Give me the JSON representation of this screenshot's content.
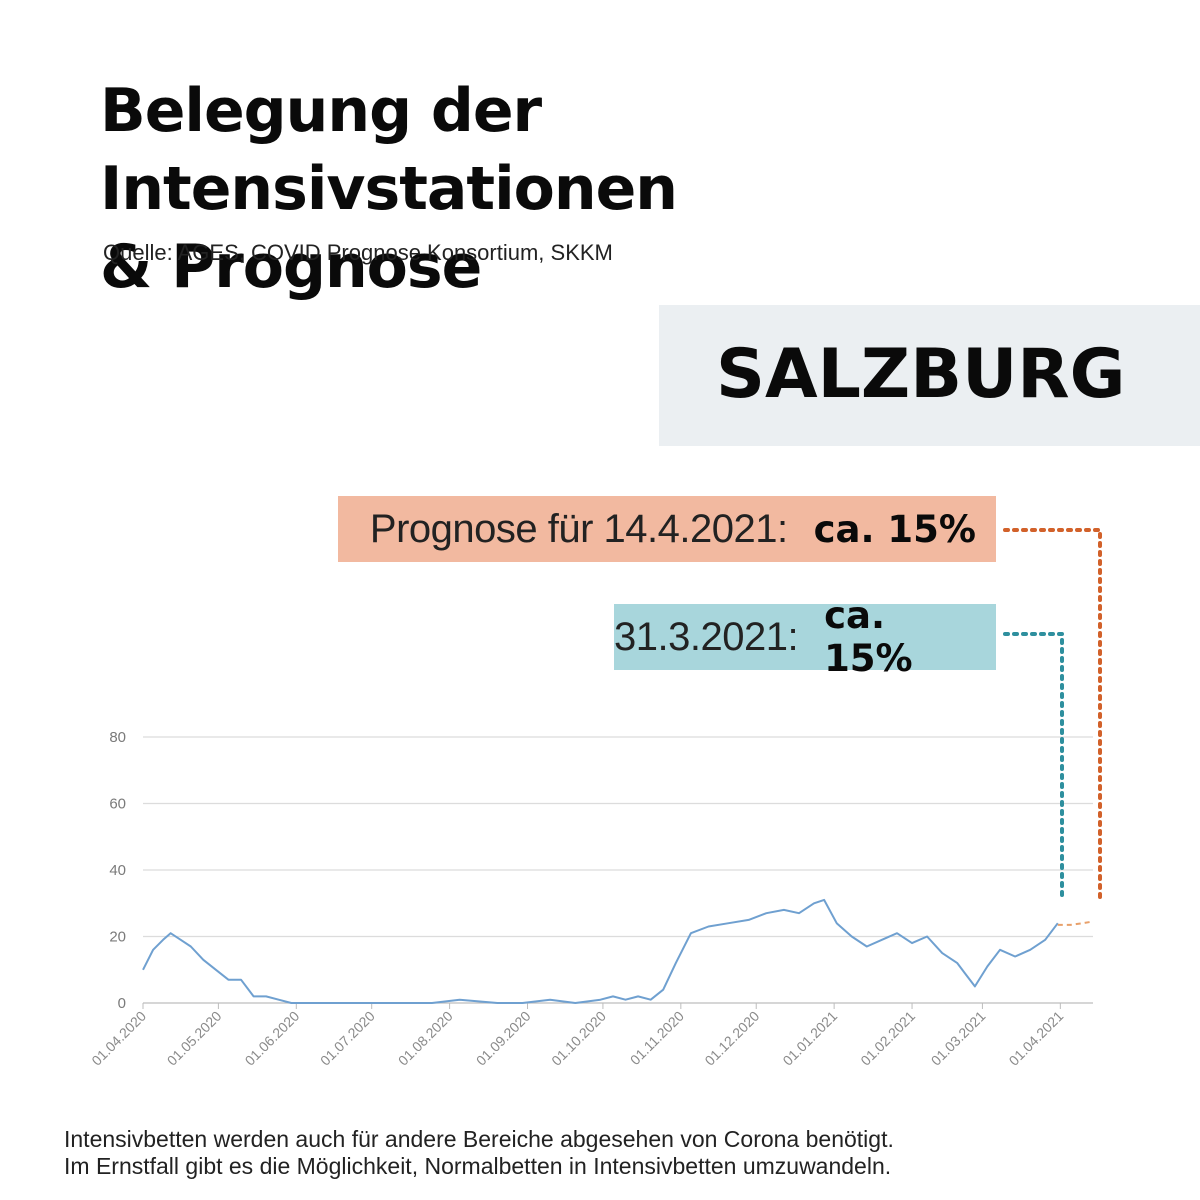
{
  "header": {
    "title_line1": "Belegung der Intensivstationen",
    "title_line2": "& Prognose",
    "source": "Quelle: AGES, COVID Prognose Konsortium, SKKM"
  },
  "region": {
    "label": "SALZBURG"
  },
  "callouts": {
    "forecast": {
      "label": "Prognose für 14.4.2021:",
      "value": "ca. 15%",
      "color": "#f2b9a0",
      "line_color": "#d2612a"
    },
    "current": {
      "label": "31.3.2021:",
      "value": "ca. 15%",
      "color": "#a8d6dc",
      "line_color": "#2e8f9e"
    }
  },
  "footnote": {
    "line1": "Intensivbetten werden auch für andere Bereiche abgesehen von Corona benötigt.",
    "line2": "Im Ernstfall gibt es die Möglichkeit, Normalbetten in Intensivbetten umzuwandeln."
  },
  "chart_data": {
    "type": "line",
    "x_start": "01.04.2020",
    "x_end": "14.04.2021",
    "ylim": [
      0,
      80
    ],
    "yticks": [
      0,
      20,
      40,
      60,
      80
    ],
    "xtick_labels": [
      "01.04.2020",
      "01.05.2020",
      "01.06.2020",
      "01.07.2020",
      "01.08.2020",
      "01.09.2020",
      "01.10.2020",
      "01.11.2020",
      "01.12.2020",
      "01.01.2021",
      "01.02.2021",
      "01.03.2021",
      "01.04.2021"
    ],
    "grid": true,
    "series": [
      {
        "color": "#6fa0d0",
        "x": [
          "2020-04-01",
          "2020-04-05",
          "2020-04-09",
          "2020-04-12",
          "2020-04-16",
          "2020-04-20",
          "2020-04-25",
          "2020-04-30",
          "2020-05-05",
          "2020-05-10",
          "2020-05-15",
          "2020-05-20",
          "2020-05-25",
          "2020-05-30",
          "2020-06-05",
          "2020-06-15",
          "2020-06-22",
          "2020-07-01",
          "2020-07-15",
          "2020-07-25",
          "2020-08-05",
          "2020-08-20",
          "2020-08-30",
          "2020-09-10",
          "2020-09-20",
          "2020-09-30",
          "2020-10-05",
          "2020-10-10",
          "2020-10-15",
          "2020-10-20",
          "2020-10-25",
          "2020-10-30",
          "2020-11-05",
          "2020-11-12",
          "2020-11-20",
          "2020-11-28",
          "2020-12-05",
          "2020-12-12",
          "2020-12-18",
          "2020-12-24",
          "2020-12-28",
          "2021-01-02",
          "2021-01-08",
          "2021-01-14",
          "2021-01-20",
          "2021-01-26",
          "2021-02-01",
          "2021-02-07",
          "2021-02-13",
          "2021-02-19",
          "2021-02-22",
          "2021-02-26",
          "2021-03-03",
          "2021-03-08",
          "2021-03-14",
          "2021-03-20",
          "2021-03-26",
          "2021-03-31"
        ],
        "y": [
          10,
          16,
          19,
          21,
          19,
          17,
          13,
          10,
          7,
          7,
          2,
          2,
          1,
          0,
          0,
          0,
          0,
          0,
          0,
          0,
          1,
          0,
          0,
          1,
          0,
          1,
          2,
          1,
          2,
          1,
          4,
          12,
          21,
          23,
          24,
          25,
          27,
          28,
          27,
          30,
          31,
          24,
          20,
          17,
          19,
          21,
          18,
          20,
          15,
          12,
          9,
          5,
          11,
          16,
          14,
          16,
          19,
          24
        ]
      },
      {
        "color": "#e8a06a",
        "dashed": true,
        "x": [
          "2021-03-31",
          "2021-04-05",
          "2021-04-10",
          "2021-04-14"
        ],
        "y": [
          23.5,
          23.5,
          24,
          24.5
        ]
      }
    ]
  }
}
